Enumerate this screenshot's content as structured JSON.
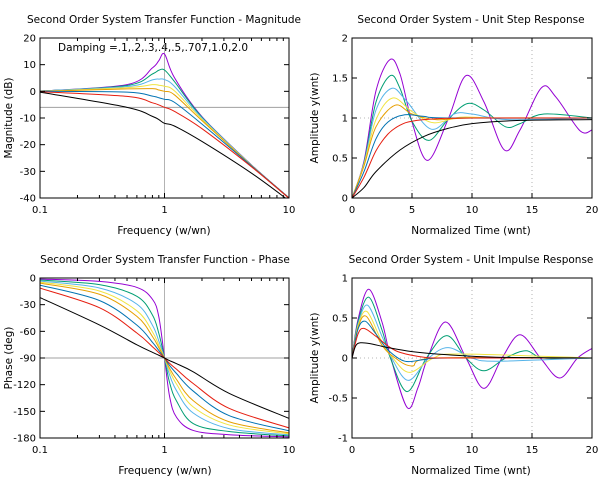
{
  "colors": {
    "damping_series": [
      "#9400D3",
      "#009E73",
      "#56B4E9",
      "#F0E442",
      "#E69F00",
      "#0072B2",
      "#E51E10",
      "#000000"
    ],
    "reference_line": "#a0a0a0",
    "grid": "#a0a0a0"
  },
  "chart_data": [
    {
      "type": "line",
      "title": "Second Order System Transfer Function - Magnitude",
      "xlabel": "Frequency (w/wn)",
      "ylabel": "Magnitude (dB)",
      "x_scale": "log",
      "xlim": [
        0.1,
        10
      ],
      "ylim": [
        -40,
        20
      ],
      "xticks": [
        "0.1",
        "1",
        "10"
      ],
      "yticks": [
        "-40",
        "-30",
        "-20",
        "-10",
        "0",
        "10",
        "20"
      ],
      "grid": "vertical at x=1",
      "reference_line_y": -6,
      "annotation": "Damping =.1,.2,.3,.4,.5,.707,1.0,2.0",
      "damping": [
        0.1,
        0.2,
        0.3,
        0.4,
        0.5,
        0.707,
        1.0,
        2.0
      ],
      "series": [
        {
          "x": [
            0.1,
            0.5,
            0.8,
            0.9,
            1.0,
            1.2,
            2,
            5,
            10
          ],
          "y": [
            0.1,
            2.5,
            8.8,
            11.5,
            14.0,
            5.2,
            -9.5,
            -27.6,
            -39.9
          ]
        },
        {
          "x": [
            0.1,
            0.5,
            0.8,
            0.9,
            1.0,
            1.2,
            2,
            5,
            10
          ],
          "y": [
            0.1,
            2.2,
            6.5,
            7.9,
            8.0,
            3.7,
            -9.7,
            -27.7,
            -39.9
          ]
        },
        {
          "x": [
            0.1,
            0.5,
            0.8,
            0.9,
            1.0,
            1.2,
            2,
            5,
            10
          ],
          "y": [
            0.1,
            1.8,
            4.3,
            4.6,
            4.4,
            1.9,
            -10.0,
            -27.7,
            -40.0
          ]
        },
        {
          "x": [
            0.1,
            0.5,
            0.8,
            0.9,
            1.0,
            1.2,
            2,
            5,
            10
          ],
          "y": [
            0.0,
            1.4,
            2.5,
            2.3,
            1.9,
            0.2,
            -10.5,
            -27.8,
            -40.0
          ]
        },
        {
          "x": [
            0.1,
            0.5,
            0.8,
            0.9,
            1.0,
            1.2,
            2,
            5,
            10
          ],
          "y": [
            0.0,
            0.9,
            1.0,
            0.5,
            0.0,
            -1.3,
            -11.0,
            -27.9,
            -40.0
          ]
        },
        {
          "x": [
            0.1,
            0.5,
            0.8,
            0.9,
            1.0,
            1.2,
            2,
            5,
            10
          ],
          "y": [
            0.0,
            -0.3,
            -1.8,
            -2.4,
            -3.0,
            -4.1,
            -12.3,
            -28.0,
            -40.0
          ]
        },
        {
          "x": [
            0.1,
            0.5,
            0.8,
            0.9,
            1.0,
            1.2,
            2,
            5,
            10
          ],
          "y": [
            -0.1,
            -1.9,
            -4.3,
            -5.1,
            -6.0,
            -7.5,
            -14.0,
            -28.3,
            -40.1
          ]
        },
        {
          "x": [
            0.1,
            0.5,
            0.8,
            0.9,
            1.0,
            1.2,
            2,
            5,
            10
          ],
          "y": [
            -0.3,
            -6.0,
            -9.4,
            -10.6,
            -12.0,
            -13.0,
            -18.8,
            -30.7,
            -41.0
          ]
        }
      ]
    },
    {
      "type": "line",
      "title": "Second Order System - Unit Step Response",
      "xlabel": "Normalized Time (wnt)",
      "ylabel": "Amplitude y(wnt)",
      "xlim": [
        0,
        20
      ],
      "ylim": [
        0,
        2
      ],
      "xticks": [
        "0",
        "5",
        "10",
        "15",
        "20"
      ],
      "yticks": [
        "0",
        "0.5",
        "1",
        "1.5",
        "2"
      ],
      "grid": "dotted vertical at x=5,10,15; dotted horizontal at y=1",
      "damping": [
        0.1,
        0.2,
        0.3,
        0.4,
        0.5,
        0.707,
        1.0,
        2.0
      ],
      "series": [
        {
          "x": [
            0,
            1,
            2,
            3.16,
            4,
            5,
            6.3,
            8,
            9.5,
            11,
            12.7,
            14,
            15.8,
            17,
            19,
            20
          ],
          "y": [
            0,
            0.46,
            1.34,
            1.73,
            1.55,
            0.95,
            0.47,
            0.98,
            1.53,
            1.2,
            0.6,
            0.85,
            1.38,
            1.26,
            0.84,
            0.85
          ]
        },
        {
          "x": [
            0,
            1,
            2,
            3.2,
            4,
            5,
            6.4,
            8,
            9.6,
            11,
            12.8,
            14,
            16,
            20
          ],
          "y": [
            0,
            0.44,
            1.2,
            1.53,
            1.37,
            0.96,
            0.72,
            0.98,
            1.18,
            1.1,
            0.89,
            0.93,
            1.05,
            1.0
          ]
        },
        {
          "x": [
            0,
            1,
            2,
            3.3,
            4.5,
            6.6,
            8.5,
            10,
            13,
            20
          ],
          "y": [
            0,
            0.43,
            1.1,
            1.37,
            1.22,
            0.86,
            1.05,
            1.05,
            0.98,
            1.0
          ]
        },
        {
          "x": [
            0,
            1,
            2,
            3.4,
            5,
            6.8,
            9,
            12,
            20
          ],
          "y": [
            0,
            0.42,
            0.98,
            1.25,
            1.08,
            0.94,
            1.01,
            1.0,
            1.0
          ]
        },
        {
          "x": [
            0,
            1,
            2,
            3.6,
            5,
            7,
            10,
            20
          ],
          "y": [
            0,
            0.4,
            0.89,
            1.16,
            1.05,
            0.98,
            1.0,
            1.0
          ]
        },
        {
          "x": [
            0,
            1,
            2,
            3,
            4.4,
            6,
            8,
            20
          ],
          "y": [
            0,
            0.33,
            0.74,
            0.95,
            1.04,
            1.02,
            1.0,
            1.0
          ]
        },
        {
          "x": [
            0,
            1,
            2,
            3,
            4,
            5,
            7,
            10,
            20
          ],
          "y": [
            0,
            0.26,
            0.59,
            0.8,
            0.91,
            0.96,
            0.99,
            1.0,
            1.0
          ]
        },
        {
          "x": [
            0,
            1,
            2,
            4,
            6,
            8,
            10,
            14,
            20
          ],
          "y": [
            0,
            0.13,
            0.33,
            0.6,
            0.77,
            0.87,
            0.93,
            0.97,
            0.98
          ]
        }
      ]
    },
    {
      "type": "line",
      "title": "Second Order System Transfer Function - Phase",
      "xlabel": "Frequency (w/wn)",
      "ylabel": "Phase (deg)",
      "x_scale": "log",
      "xlim": [
        0.1,
        10
      ],
      "ylim": [
        -180,
        0
      ],
      "xticks": [
        "0.1",
        "1",
        "10"
      ],
      "yticks": [
        "-180",
        "-150",
        "-120",
        "-90",
        "-60",
        "-30",
        "0"
      ],
      "grid": "vertical at x=1",
      "reference_line_y": -90,
      "damping": [
        0.1,
        0.2,
        0.3,
        0.4,
        0.5,
        0.707,
        1.0,
        2.0
      ],
      "series": [
        {
          "x": [
            0.1,
            0.3,
            0.6,
            0.8,
            0.9,
            1.0,
            1.1,
            1.25,
            1.7,
            3.3,
            10
          ],
          "y": [
            -1.2,
            -3.8,
            -10.6,
            -23.9,
            -43.5,
            -90,
            -133.6,
            -156.8,
            -171.5,
            -176.3,
            -178.8
          ]
        },
        {
          "x": [
            0.1,
            0.3,
            0.6,
            0.8,
            0.9,
            1.0,
            1.1,
            1.25,
            1.7,
            3.3,
            10
          ],
          "y": [
            -2.3,
            -7.5,
            -20.6,
            -41.6,
            -62.2,
            -90,
            -117.9,
            -138.5,
            -163.7,
            -172.7,
            -177.7
          ]
        },
        {
          "x": [
            0.1,
            0.3,
            0.6,
            0.8,
            0.9,
            1.0,
            1.1,
            1.25,
            1.7,
            3.3,
            10
          ],
          "y": [
            -3.5,
            -11.2,
            -29.4,
            -53.1,
            -70.8,
            -90,
            -109.2,
            -126.9,
            -151.9,
            -169.4,
            -176.5
          ]
        },
        {
          "x": [
            0.1,
            0.3,
            0.6,
            0.8,
            0.9,
            1.0,
            1.1,
            1.25,
            1.7,
            3.3,
            10
          ],
          "y": [
            -4.6,
            -14.6,
            -36.9,
            -60.6,
            -75.4,
            -90,
            -104.6,
            -119.4,
            -145.0,
            -165.3,
            -175.4
          ]
        },
        {
          "x": [
            0.1,
            0.3,
            0.6,
            0.8,
            0.9,
            1.0,
            1.1,
            1.25,
            1.7,
            3.3,
            10
          ],
          "y": [
            -5.8,
            -18.3,
            -43.2,
            -65.8,
            -78.3,
            -90,
            -101.7,
            -114.2,
            -138.0,
            -161.7,
            -174.2
          ]
        },
        {
          "x": [
            0.1,
            0.3,
            0.6,
            0.8,
            0.9,
            1.0,
            1.1,
            1.25,
            1.7,
            3.3,
            10
          ],
          "y": [
            -8.1,
            -25.3,
            -53.0,
            -72.4,
            -81.5,
            -90,
            -98.5,
            -107.6,
            -127.2,
            -154.8,
            -171.9
          ]
        },
        {
          "x": [
            0.1,
            0.3,
            0.6,
            0.8,
            0.9,
            1.0,
            1.1,
            1.25,
            1.7,
            3.3,
            10
          ],
          "y": [
            -11.4,
            -33.4,
            -61.9,
            -77.3,
            -83.9,
            -90,
            -96.1,
            -102.7,
            -118.7,
            -146.6,
            -168.6
          ]
        },
        {
          "x": [
            0.1,
            0.3,
            0.6,
            0.8,
            0.9,
            1.0,
            1.1,
            1.25,
            1.7,
            3.3,
            10
          ],
          "y": [
            -22.0,
            -52.8,
            -75.2,
            -83.6,
            -86.9,
            -90,
            -93.0,
            -96.4,
            -105.5,
            -129.7,
            -157.9
          ]
        }
      ]
    },
    {
      "type": "line",
      "title": "Second Order System - Unit Impulse Response",
      "xlabel": "Normalized Time (wnt)",
      "ylabel": "Amplitude y(wnt)",
      "xlim": [
        0,
        20
      ],
      "ylim": [
        -1,
        1
      ],
      "xticks": [
        "0",
        "5",
        "10",
        "15",
        "20"
      ],
      "yticks": [
        "-1",
        "-0.5",
        "0",
        "0.5",
        "1"
      ],
      "grid": "dotted vertical at x=5,10,15; dotted horizontal at y=0",
      "damping": [
        0.1,
        0.2,
        0.3,
        0.4,
        0.5,
        0.707,
        1.0,
        2.0
      ],
      "series": [
        {
          "x": [
            0,
            0.5,
            1.4,
            2.5,
            3.2,
            4.6,
            5.5,
            6.3,
            7.8,
            9.5,
            11,
            12.5,
            14,
            15.7,
            17.3,
            18.8,
            20
          ],
          "y": [
            0,
            0.48,
            0.86,
            0.45,
            0.02,
            -0.62,
            -0.37,
            0.0,
            0.45,
            0.0,
            -0.38,
            0.0,
            0.29,
            0.0,
            -0.25,
            0.0,
            0.12
          ]
        },
        {
          "x": [
            0,
            0.5,
            1.4,
            2.5,
            3.2,
            4.6,
            6.2,
            7.9,
            9.5,
            11,
            12.8,
            14.5,
            16,
            20
          ],
          "y": [
            0,
            0.45,
            0.76,
            0.35,
            0.0,
            -0.42,
            0.0,
            0.28,
            0.0,
            -0.16,
            0.0,
            0.09,
            0.0,
            0.0
          ]
        },
        {
          "x": [
            0,
            0.5,
            1.3,
            2.5,
            3.3,
            4.7,
            6.4,
            8,
            10,
            12,
            20
          ],
          "y": [
            0,
            0.42,
            0.66,
            0.27,
            0.0,
            -0.28,
            0.0,
            0.13,
            0.0,
            -0.04,
            0.0
          ]
        },
        {
          "x": [
            0,
            0.5,
            1.25,
            2.5,
            3.4,
            4.8,
            6.8,
            9,
            20
          ],
          "y": [
            0,
            0.4,
            0.58,
            0.2,
            0.0,
            -0.18,
            0.0,
            0.05,
            0.0
          ]
        },
        {
          "x": [
            0,
            0.5,
            1.2,
            2.5,
            3.6,
            5,
            7,
            20
          ],
          "y": [
            0,
            0.38,
            0.52,
            0.16,
            0.0,
            -0.1,
            0.0,
            0.0
          ]
        },
        {
          "x": [
            0,
            0.5,
            1.1,
            2,
            3,
            4.4,
            6,
            8,
            20
          ],
          "y": [
            0,
            0.36,
            0.46,
            0.3,
            0.1,
            -0.04,
            -0.02,
            0.0,
            0.0
          ]
        },
        {
          "x": [
            0,
            0.5,
            1,
            2,
            3,
            4,
            6,
            8,
            20
          ],
          "y": [
            0,
            0.3,
            0.37,
            0.27,
            0.15,
            0.07,
            0.01,
            0.0,
            0.0
          ]
        },
        {
          "x": [
            0,
            0.3,
            0.7,
            1.5,
            3,
            5,
            8,
            12,
            20
          ],
          "y": [
            0,
            0.15,
            0.19,
            0.18,
            0.13,
            0.08,
            0.04,
            0.01,
            0.0
          ]
        }
      ]
    }
  ]
}
